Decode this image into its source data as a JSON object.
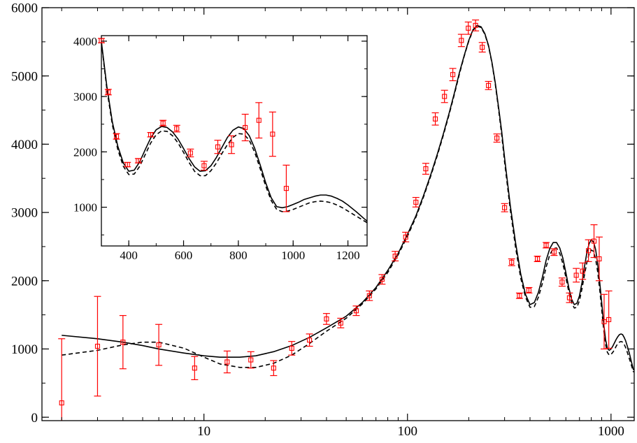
{
  "chart_data": [
    {
      "type": "line",
      "title": "",
      "xlabel": "",
      "ylabel": "",
      "x_scale": "log",
      "xlim": [
        1.6,
        1300
      ],
      "ylim": [
        -50,
        6000
      ],
      "grid": false,
      "x_ticks": [
        10,
        100,
        1000
      ],
      "x_tick_labels": [
        "10",
        "100",
        "1000"
      ],
      "y_ticks": [
        0,
        1000,
        2000,
        3000,
        4000,
        5000,
        6000
      ],
      "y_tick_labels": [
        "0",
        "1000",
        "2000",
        "3000",
        "4000",
        "5000",
        "6000"
      ],
      "series": [
        {
          "style": "solid",
          "color": "#000000",
          "x": [
            2,
            3,
            4,
            5,
            6,
            8,
            10,
            12,
            15,
            18,
            22,
            27,
            33,
            40,
            50,
            60,
            70,
            80,
            90,
            100,
            110,
            120,
            130,
            140,
            150,
            160,
            170,
            180,
            190,
            200,
            210,
            220,
            230,
            240,
            250,
            260,
            270,
            280,
            290,
            300,
            320,
            340,
            360,
            380,
            400,
            420,
            440,
            460,
            480,
            500,
            520,
            540,
            560,
            580,
            600,
            620,
            640,
            660,
            680,
            700,
            720,
            740,
            760,
            780,
            800,
            820,
            840,
            860,
            880,
            900,
            920,
            940,
            960,
            980,
            1000,
            1020,
            1040,
            1060,
            1080,
            1100,
            1120,
            1140,
            1160,
            1180,
            1200,
            1230,
            1260,
            1290
          ],
          "y": [
            1200,
            1150,
            1100,
            1050,
            1000,
            940,
            900,
            880,
            880,
            900,
            960,
            1050,
            1170,
            1310,
            1480,
            1680,
            1900,
            2150,
            2400,
            2680,
            2950,
            3250,
            3550,
            3850,
            4150,
            4450,
            4750,
            5050,
            5300,
            5520,
            5680,
            5740,
            5720,
            5620,
            5450,
            5200,
            4900,
            4550,
            4200,
            3800,
            3100,
            2550,
            2100,
            1800,
            1650,
            1680,
            1830,
            2050,
            2300,
            2470,
            2560,
            2560,
            2480,
            2330,
            2120,
            1900,
            1730,
            1650,
            1670,
            1780,
            1970,
            2200,
            2400,
            2540,
            2600,
            2570,
            2460,
            2250,
            1980,
            1680,
            1380,
            1140,
            1010,
            980,
            1000,
            1040,
            1090,
            1140,
            1180,
            1210,
            1220,
            1210,
            1170,
            1120,
            1050,
            940,
            810,
            690
          ]
        },
        {
          "style": "dashed",
          "color": "#000000",
          "x": [
            2,
            3,
            4,
            5,
            6,
            8,
            10,
            12,
            15,
            18,
            22,
            27,
            33,
            40,
            50,
            60,
            70,
            80,
            90,
            100,
            110,
            120,
            130,
            140,
            150,
            160,
            170,
            180,
            190,
            200,
            210,
            220,
            230,
            240,
            250,
            260,
            270,
            280,
            290,
            300,
            320,
            340,
            360,
            380,
            400,
            420,
            440,
            460,
            480,
            500,
            520,
            540,
            560,
            580,
            600,
            620,
            640,
            660,
            680,
            700,
            720,
            740,
            760,
            780,
            800,
            820,
            840,
            860,
            880,
            900,
            920,
            940,
            960,
            980,
            1000,
            1020,
            1040,
            1060,
            1080,
            1100,
            1120,
            1140,
            1160,
            1180,
            1200,
            1230,
            1260,
            1290
          ],
          "y": [
            910,
            980,
            1060,
            1100,
            1100,
            1010,
            880,
            780,
            730,
            730,
            790,
            910,
            1080,
            1260,
            1450,
            1660,
            1880,
            2120,
            2380,
            2650,
            2930,
            3230,
            3530,
            3830,
            4130,
            4430,
            4730,
            5030,
            5290,
            5510,
            5670,
            5730,
            5710,
            5610,
            5440,
            5190,
            4880,
            4520,
            4150,
            3740,
            3040,
            2480,
            2040,
            1760,
            1610,
            1620,
            1760,
            1960,
            2200,
            2380,
            2470,
            2480,
            2400,
            2250,
            2050,
            1840,
            1680,
            1600,
            1610,
            1710,
            1880,
            2080,
            2260,
            2390,
            2450,
            2430,
            2320,
            2130,
            1870,
            1580,
            1290,
            1070,
            950,
            910,
            920,
            950,
            990,
            1040,
            1080,
            1100,
            1110,
            1100,
            1070,
            1020,
            960,
            860,
            760,
            660
          ]
        },
        {
          "style": "markers",
          "color": "#ff0000",
          "x": [
            2,
            3,
            4,
            6,
            9,
            13,
            17,
            22,
            27,
            33,
            40,
            47,
            56,
            65,
            75,
            87,
            98,
            110,
            123,
            137,
            152,
            167,
            184,
            199,
            216,
            233,
            250,
            275,
            300,
            325,
            355,
            395,
            435,
            480,
            525,
            575,
            625,
            675,
            725,
            775,
            825,
            875,
            925,
            975
          ],
          "y": [
            210,
            1040,
            1100,
            1060,
            720,
            810,
            840,
            720,
            1010,
            1130,
            1440,
            1380,
            1560,
            1780,
            2020,
            2360,
            2640,
            3150,
            3640,
            4370,
            4700,
            5020,
            5520,
            5700,
            5740,
            5420,
            4860,
            4090,
            3070,
            2270,
            1780,
            1860,
            2320,
            2520,
            2420,
            1980,
            1750,
            2080,
            2140,
            2440,
            2580,
            2320,
            1400,
            1430
          ],
          "err": [
            940,
            730,
            390,
            300,
            170,
            160,
            120,
            110,
            100,
            90,
            80,
            70,
            70,
            70,
            70,
            70,
            70,
            70,
            80,
            90,
            90,
            90,
            90,
            90,
            80,
            70,
            60,
            60,
            60,
            50,
            40,
            40,
            40,
            40,
            50,
            60,
            70,
            100,
            120,
            160,
            240,
            320,
            400,
            420
          ]
        }
      ]
    },
    {
      "type": "line",
      "title": "",
      "xlabel": "",
      "ylabel": "",
      "x_scale": "linear",
      "xlim": [
        300,
        1270
      ],
      "ylim": [
        300,
        4100
      ],
      "grid": false,
      "x_ticks": [
        400,
        600,
        800,
        1000,
        1200
      ],
      "x_tick_labels": [
        "400",
        "600",
        "800",
        "1000",
        "1200"
      ],
      "y_ticks": [
        1000,
        2000,
        3000,
        4000
      ],
      "y_tick_labels": [
        "1000",
        "2000",
        "3000",
        "4000"
      ],
      "series": [
        {
          "style": "solid",
          "color": "#000000",
          "x": [
            300,
            320,
            340,
            360,
            380,
            400,
            420,
            440,
            460,
            480,
            500,
            520,
            540,
            560,
            580,
            600,
            620,
            640,
            660,
            680,
            700,
            720,
            740,
            760,
            780,
            800,
            820,
            840,
            860,
            880,
            900,
            920,
            940,
            960,
            980,
            1000,
            1020,
            1040,
            1060,
            1080,
            1100,
            1120,
            1140,
            1160,
            1180,
            1200,
            1230,
            1260,
            1270
          ],
          "y": [
            3990,
            3180,
            2540,
            2100,
            1800,
            1650,
            1670,
            1820,
            2040,
            2250,
            2400,
            2460,
            2440,
            2360,
            2230,
            2060,
            1880,
            1730,
            1650,
            1660,
            1750,
            1900,
            2080,
            2260,
            2390,
            2450,
            2420,
            2290,
            2060,
            1760,
            1440,
            1170,
            1010,
            990,
            1010,
            1050,
            1090,
            1140,
            1170,
            1200,
            1220,
            1220,
            1200,
            1160,
            1110,
            1040,
            920,
            790,
            750
          ]
        },
        {
          "style": "dashed",
          "color": "#000000",
          "x": [
            300,
            320,
            340,
            360,
            380,
            400,
            420,
            440,
            460,
            480,
            500,
            520,
            540,
            560,
            580,
            600,
            620,
            640,
            660,
            680,
            700,
            720,
            740,
            760,
            780,
            800,
            820,
            840,
            860,
            880,
            900,
            920,
            940,
            960,
            980,
            1000,
            1020,
            1040,
            1060,
            1080,
            1100,
            1120,
            1140,
            1160,
            1180,
            1200,
            1230,
            1260,
            1270
          ],
          "y": [
            3980,
            3130,
            2490,
            2040,
            1740,
            1590,
            1600,
            1740,
            1950,
            2160,
            2310,
            2380,
            2370,
            2290,
            2160,
            1990,
            1810,
            1650,
            1570,
            1570,
            1660,
            1800,
            1970,
            2130,
            2260,
            2330,
            2320,
            2210,
            1990,
            1690,
            1380,
            1120,
            960,
            920,
            930,
            960,
            1000,
            1040,
            1080,
            1100,
            1110,
            1100,
            1080,
            1040,
            990,
            930,
            840,
            750,
            720
          ]
        },
        {
          "style": "markers",
          "color": "#ff0000",
          "x": [
            300,
            325,
            355,
            395,
            435,
            480,
            525,
            575,
            625,
            675,
            725,
            775,
            825,
            875,
            925,
            975
          ],
          "y": [
            4010,
            3080,
            2280,
            1770,
            1840,
            2310,
            2520,
            2420,
            1980,
            1750,
            2090,
            2130,
            2440,
            2570,
            2320,
            1340
          ],
          "err": [
            40,
            50,
            50,
            40,
            40,
            40,
            50,
            60,
            70,
            80,
            120,
            160,
            240,
            320,
            400,
            420
          ]
        }
      ]
    }
  ]
}
